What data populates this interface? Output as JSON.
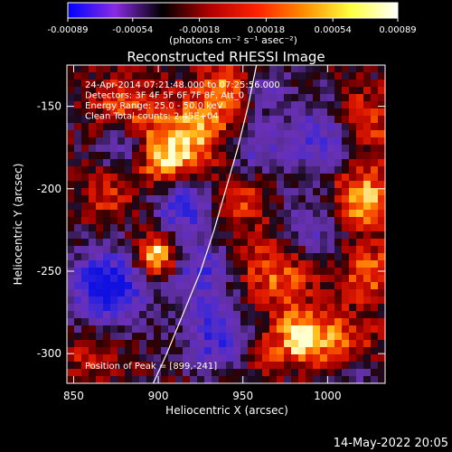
{
  "chart_data": {
    "type": "heatmap",
    "title": "Reconstructed RHESSI Image",
    "colorbar": {
      "ticks": [
        -0.00089,
        -0.00054,
        -0.00018,
        0.00018,
        0.00054,
        0.00089
      ],
      "tick_labels": [
        "-0.00089",
        "-0.00054",
        "-0.00018",
        "0.00018",
        "0.00054",
        "0.00089"
      ],
      "units_label": "(photons cm⁻² s⁻¹ asec⁻²)",
      "range": [
        -0.00089,
        0.00089
      ],
      "colormap_stops": [
        "#0000ff",
        "#8a2be2",
        "#000000",
        "#b00000",
        "#ff2000",
        "#ff8c00",
        "#ffff40",
        "#ffffff"
      ]
    },
    "xlabel": "Heliocentric X (arcsec)",
    "ylabel": "Heliocentric Y (arcsec)",
    "xlim": [
      846,
      1034
    ],
    "ylim": [
      -318,
      -125
    ],
    "x_ticks": [
      850,
      900,
      950,
      1000
    ],
    "y_ticks": [
      -150,
      -200,
      -250,
      -300
    ],
    "x_tick_labels": [
      "850",
      "900",
      "950",
      "1000"
    ],
    "y_tick_labels": [
      "-150",
      "-200",
      "-250",
      "-300"
    ],
    "annotations": [
      "24-Apr-2014 07:21:48.000 to 07:25:56.000",
      "Detectors: 3F 4F 5F 6F 7F 8F, Att_0",
      "Energy Range: 25.0 - 50.0 keV",
      "Clean     Total counts: 2.45E+04"
    ],
    "peak_label": "Position of Peak = [899,-241]",
    "peak": [
      899,
      -241
    ],
    "limb_curve": [
      [
        897,
        -318
      ],
      [
        905,
        -300
      ],
      [
        915,
        -275
      ],
      [
        925,
        -250
      ],
      [
        933,
        -225
      ],
      [
        940,
        -200
      ],
      [
        947,
        -175
      ],
      [
        953,
        -150
      ],
      [
        958,
        -125
      ]
    ],
    "grid": false
  },
  "footer": {
    "date": "14-May-2022 20:05"
  }
}
